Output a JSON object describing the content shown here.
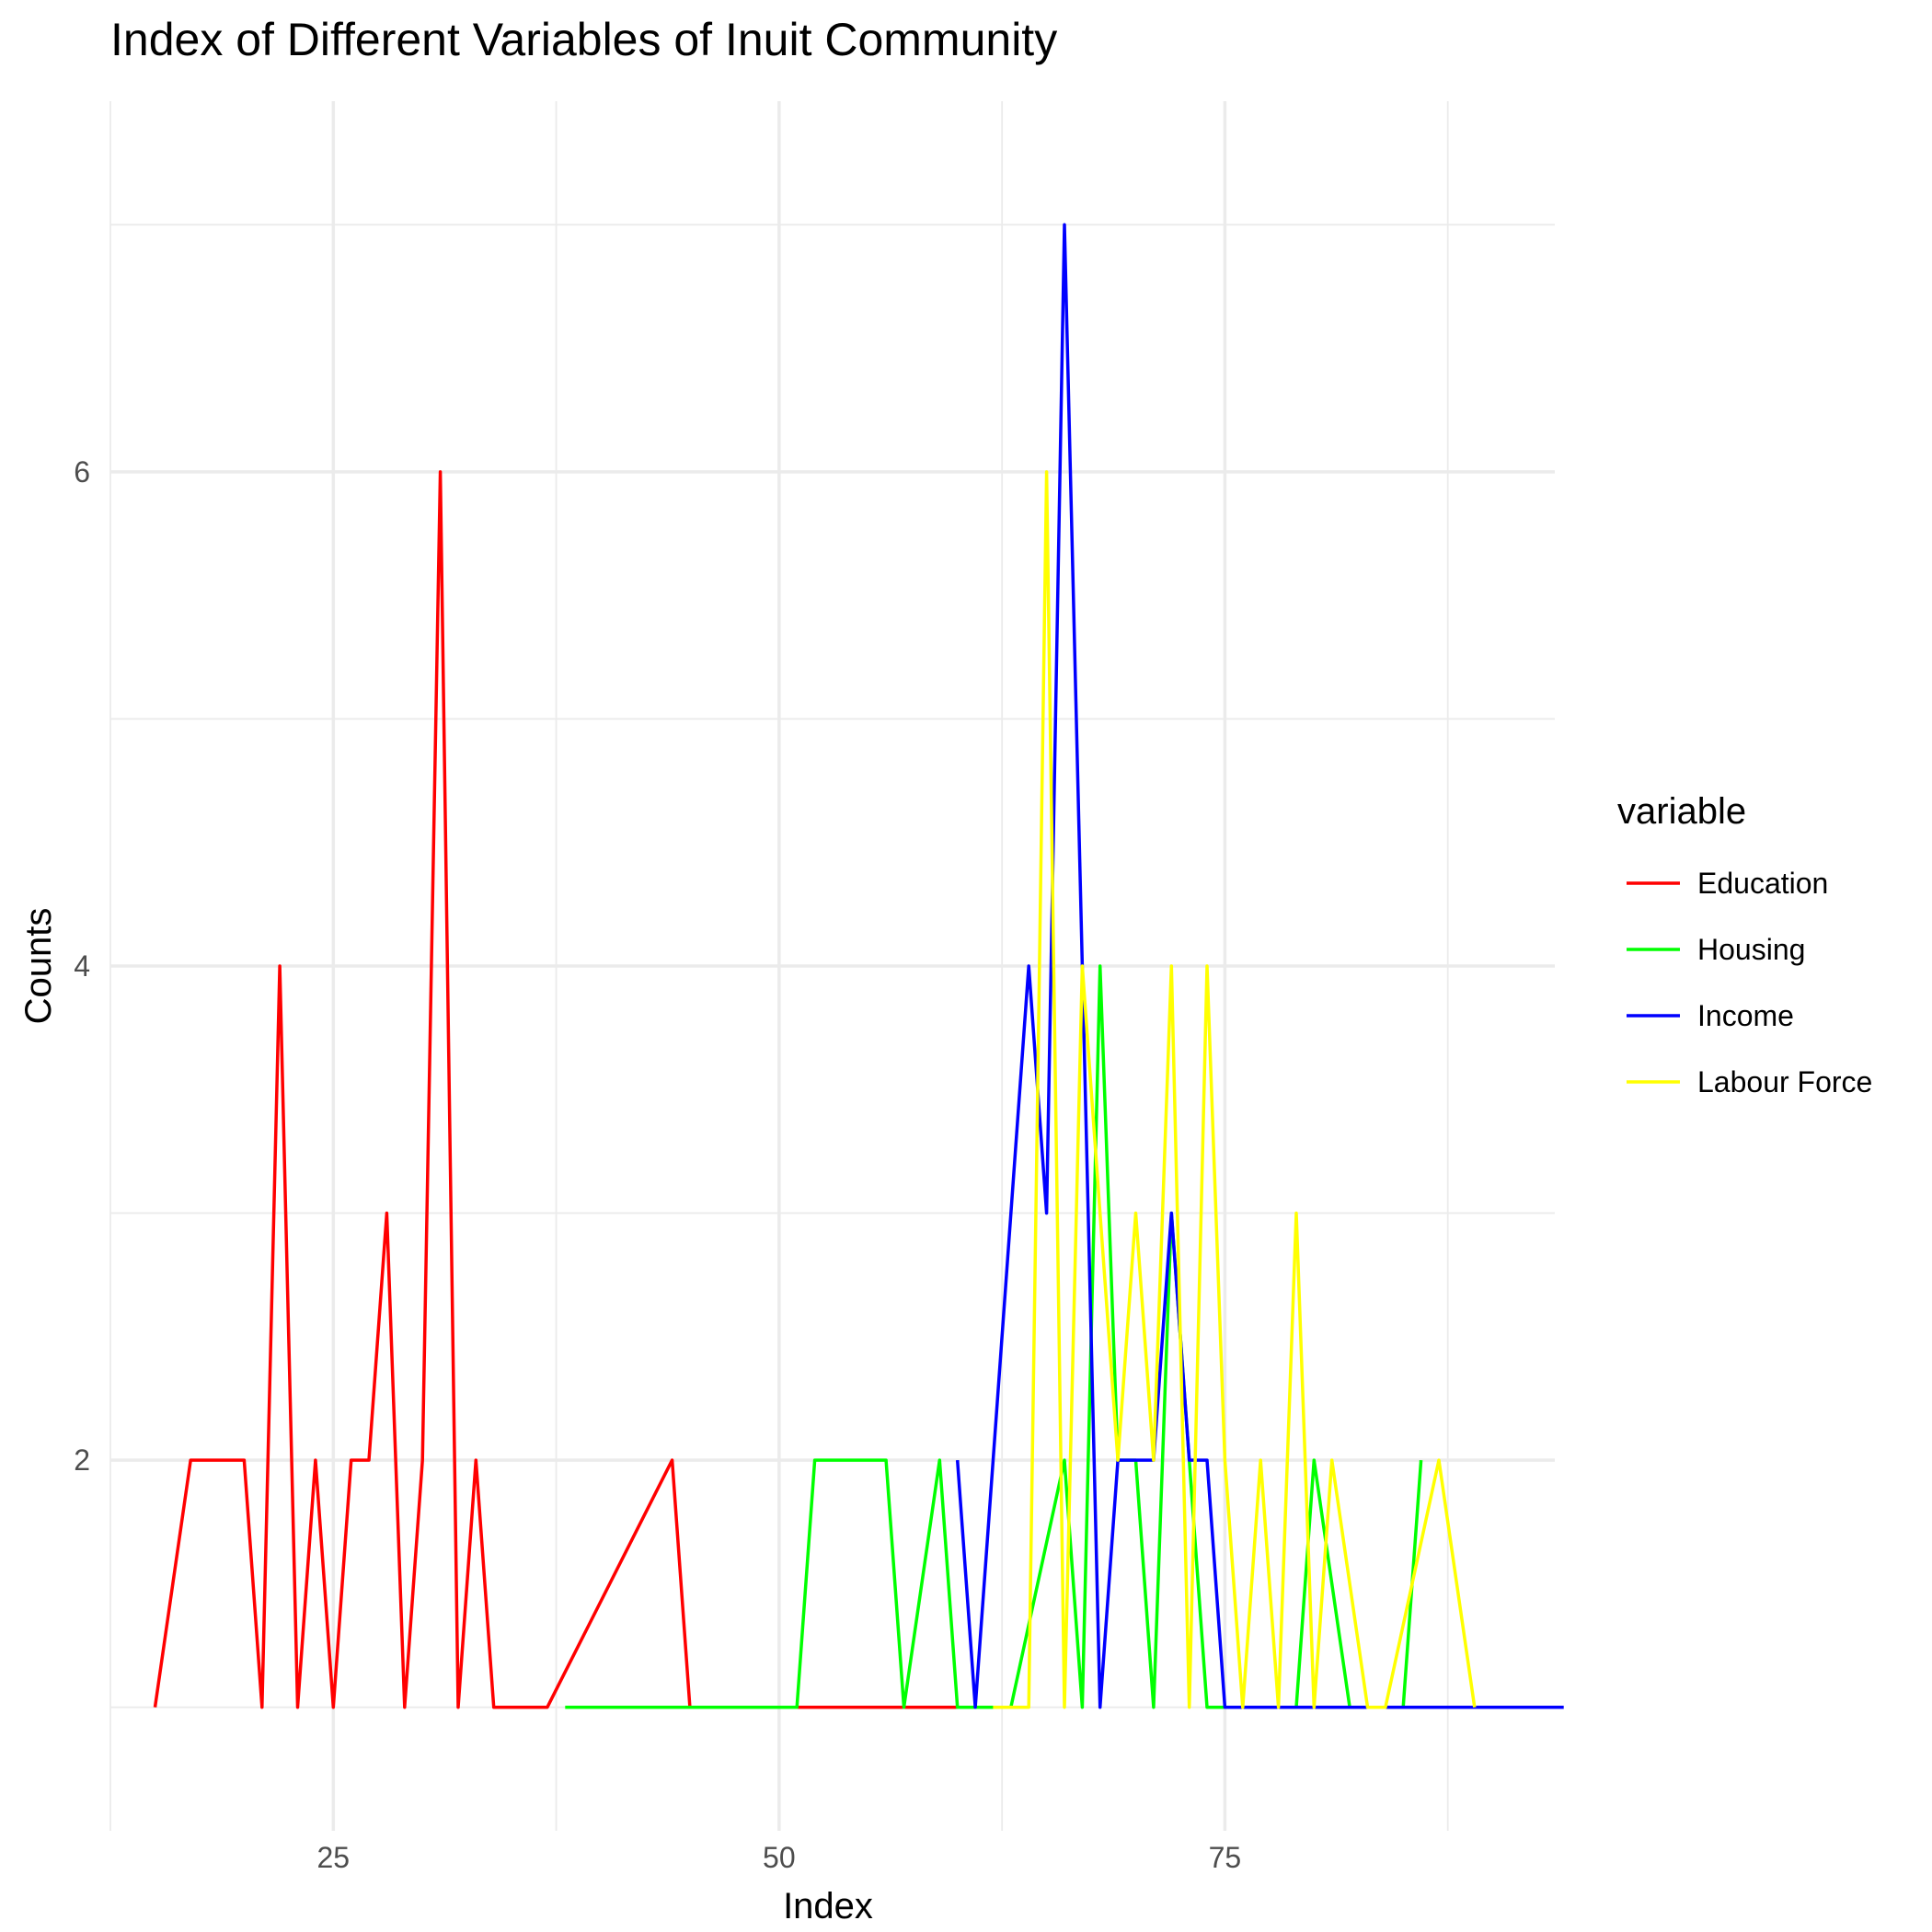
{
  "chart_data": {
    "type": "line",
    "title": "Index of Different Variables of Inuit Community",
    "xlabel": "Index",
    "ylabel": "Counts",
    "xlim": [
      12.5,
      93.5
    ],
    "ylim": [
      0.5,
      7.5
    ],
    "x_ticks": [
      25,
      50,
      75
    ],
    "x_tick_labels": [
      "25",
      "50",
      "75"
    ],
    "y_ticks": [
      2,
      4,
      6
    ],
    "y_tick_labels": [
      "2",
      "4",
      "6"
    ],
    "grid": true,
    "legend": {
      "title": "variable",
      "position": "right"
    },
    "series": [
      {
        "name": "Education",
        "color": "#ff0000",
        "x": [
          15,
          17,
          18,
          19,
          20,
          21,
          22,
          23,
          24,
          25,
          26,
          27,
          28,
          29,
          30,
          31,
          32,
          33,
          34,
          35,
          36,
          37,
          44,
          45,
          47,
          50,
          55,
          60
        ],
        "y": [
          1,
          2,
          2,
          2,
          2,
          1,
          4,
          1,
          2,
          1,
          2,
          2,
          3,
          1,
          2,
          6,
          1,
          2,
          1,
          1,
          1,
          1,
          2,
          1,
          1,
          1,
          1,
          1
        ]
      },
      {
        "name": "Housing",
        "color": "#00ff00",
        "x": [
          38,
          45,
          50,
          51,
          52,
          53,
          54,
          55,
          56,
          57,
          59,
          60,
          62,
          63,
          66,
          67,
          68,
          69,
          70,
          71,
          72,
          73,
          74,
          75,
          76,
          78,
          79,
          80,
          82,
          84,
          85,
          86
        ],
        "y": [
          1,
          1,
          1,
          1,
          2,
          2,
          2,
          2,
          2,
          1,
          2,
          1,
          1,
          1,
          2,
          1,
          4,
          2,
          2,
          1,
          3,
          2,
          1,
          1,
          1,
          1,
          1,
          2,
          1,
          1,
          1,
          2
        ]
      },
      {
        "name": "Income",
        "color": "#0000ff",
        "x": [
          60,
          61,
          64,
          65,
          66,
          67,
          68,
          69,
          70,
          71,
          72,
          73,
          74,
          75,
          80,
          85,
          88,
          94
        ],
        "y": [
          2,
          1,
          4,
          3,
          7,
          4,
          1,
          2,
          2,
          2,
          3,
          2,
          2,
          1,
          1,
          1,
          1,
          1
        ]
      },
      {
        "name": "Labour Force",
        "color": "#ffff00",
        "x": [
          62,
          64,
          65,
          66,
          67,
          68,
          69,
          70,
          71,
          72,
          73,
          74,
          75,
          76,
          77,
          78,
          79,
          80,
          81,
          83,
          84,
          87,
          89
        ],
        "y": [
          1,
          1,
          6,
          1,
          4,
          3,
          2,
          3,
          2,
          4,
          1,
          4,
          2,
          1,
          2,
          1,
          3,
          1,
          2,
          1,
          1,
          2,
          1
        ]
      }
    ]
  }
}
